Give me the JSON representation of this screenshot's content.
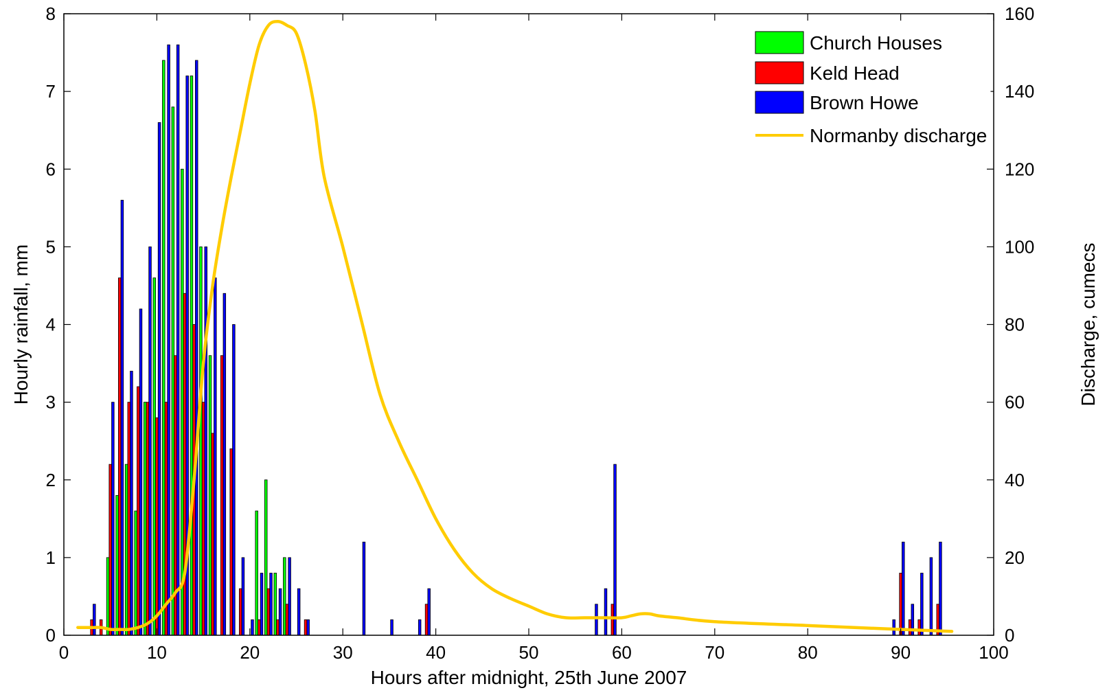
{
  "chart_data": {
    "type": "bar",
    "title": "",
    "xlabel": "Hours after midnight, 25th June 2007",
    "ylabel": "Hourly rainfall, mm",
    "y2label": "Discharge, cumecs",
    "xlim": [
      0,
      100
    ],
    "ylim": [
      0,
      8
    ],
    "y2lim": [
      0,
      160
    ],
    "xticks": [
      "0",
      "10",
      "20",
      "30",
      "40",
      "50",
      "60",
      "70",
      "80",
      "90",
      "100"
    ],
    "yticks": [
      "0",
      "1",
      "2",
      "3",
      "4",
      "5",
      "6",
      "7",
      "8"
    ],
    "y2ticks": [
      "0",
      "20",
      "40",
      "60",
      "80",
      "100",
      "120",
      "140",
      "160"
    ],
    "grid": false,
    "legend_position": "top-right",
    "series": [
      {
        "name": "Church Houses",
        "color": "#00ff00",
        "points": [
          [
            5,
            1.0
          ],
          [
            6,
            1.8
          ],
          [
            7,
            2.2
          ],
          [
            8,
            1.6
          ],
          [
            9,
            3.0
          ],
          [
            10,
            4.6
          ],
          [
            11,
            7.4
          ],
          [
            12,
            6.8
          ],
          [
            13,
            6.0
          ],
          [
            14,
            7.2
          ],
          [
            15,
            5.0
          ],
          [
            16,
            3.6
          ],
          [
            21,
            1.6
          ],
          [
            22,
            2.0
          ],
          [
            23,
            0.8
          ],
          [
            24,
            1.0
          ]
        ]
      },
      {
        "name": "Keld Head",
        "color": "#ff0000",
        "points": [
          [
            3,
            0.2
          ],
          [
            4,
            0.2
          ],
          [
            5,
            2.2
          ],
          [
            6,
            4.6
          ],
          [
            7,
            3.0
          ],
          [
            8,
            3.2
          ],
          [
            9,
            3.0
          ],
          [
            10,
            2.8
          ],
          [
            11,
            3.0
          ],
          [
            12,
            3.6
          ],
          [
            13,
            4.4
          ],
          [
            14,
            4.0
          ],
          [
            15,
            3.0
          ],
          [
            16,
            2.6
          ],
          [
            17,
            3.6
          ],
          [
            18,
            2.4
          ],
          [
            19,
            0.6
          ],
          [
            21,
            0.2
          ],
          [
            22,
            0.6
          ],
          [
            23,
            0.2
          ],
          [
            24,
            0.4
          ],
          [
            26,
            0.2
          ],
          [
            39,
            0.4
          ],
          [
            59,
            0.4
          ],
          [
            90,
            0.8
          ],
          [
            91,
            0.2
          ],
          [
            92,
            0.2
          ],
          [
            94,
            0.4
          ]
        ]
      },
      {
        "name": "Brown Howe",
        "color": "#0000ff",
        "points": [
          [
            3,
            0.4
          ],
          [
            5,
            3.0
          ],
          [
            6,
            5.6
          ],
          [
            7,
            3.4
          ],
          [
            8,
            4.2
          ],
          [
            9,
            5.0
          ],
          [
            10,
            6.6
          ],
          [
            11,
            7.6
          ],
          [
            12,
            7.6
          ],
          [
            13,
            7.2
          ],
          [
            14,
            7.4
          ],
          [
            15,
            5.0
          ],
          [
            16,
            4.6
          ],
          [
            17,
            4.4
          ],
          [
            18,
            4.0
          ],
          [
            19,
            1.0
          ],
          [
            20,
            0.2
          ],
          [
            21,
            0.8
          ],
          [
            22,
            0.8
          ],
          [
            23,
            0.6
          ],
          [
            24,
            1.0
          ],
          [
            25,
            0.6
          ],
          [
            26,
            0.2
          ],
          [
            32,
            1.2
          ],
          [
            35,
            0.2
          ],
          [
            38,
            0.2
          ],
          [
            39,
            0.6
          ],
          [
            57,
            0.4
          ],
          [
            58,
            0.6
          ],
          [
            59,
            2.2
          ],
          [
            89,
            0.2
          ],
          [
            90,
            1.2
          ],
          [
            91,
            0.4
          ],
          [
            92,
            0.8
          ],
          [
            93,
            1.0
          ],
          [
            94,
            1.2
          ]
        ]
      },
      {
        "name": "Normanby discharge",
        "type": "line",
        "axis": "right",
        "color": "#ffcc00",
        "x": [
          1.5,
          3,
          4,
          5,
          6,
          7,
          8,
          9,
          10,
          11,
          12,
          13,
          14,
          15,
          16,
          17,
          18,
          19,
          20,
          21,
          22,
          23,
          24,
          25,
          26,
          27,
          28,
          30,
          32,
          34,
          36,
          38,
          40,
          42,
          44,
          46,
          48,
          50,
          52,
          54,
          56,
          58,
          60,
          61,
          62,
          63,
          64,
          66,
          70,
          80,
          90,
          95.5
        ],
        "y": [
          2,
          2,
          2,
          1.5,
          1.5,
          1.5,
          2,
          3,
          5,
          8,
          11,
          16,
          40,
          70,
          90,
          105,
          118,
          130,
          142,
          152,
          157,
          158,
          157,
          155,
          147,
          135,
          118,
          100,
          81,
          62,
          50,
          40,
          30,
          22,
          16,
          12,
          9.5,
          7.5,
          5.5,
          4.5,
          4.5,
          4.5,
          4.5,
          5,
          5.5,
          5.5,
          5,
          4.5,
          3.5,
          2.5,
          1.5,
          1
        ]
      }
    ]
  }
}
